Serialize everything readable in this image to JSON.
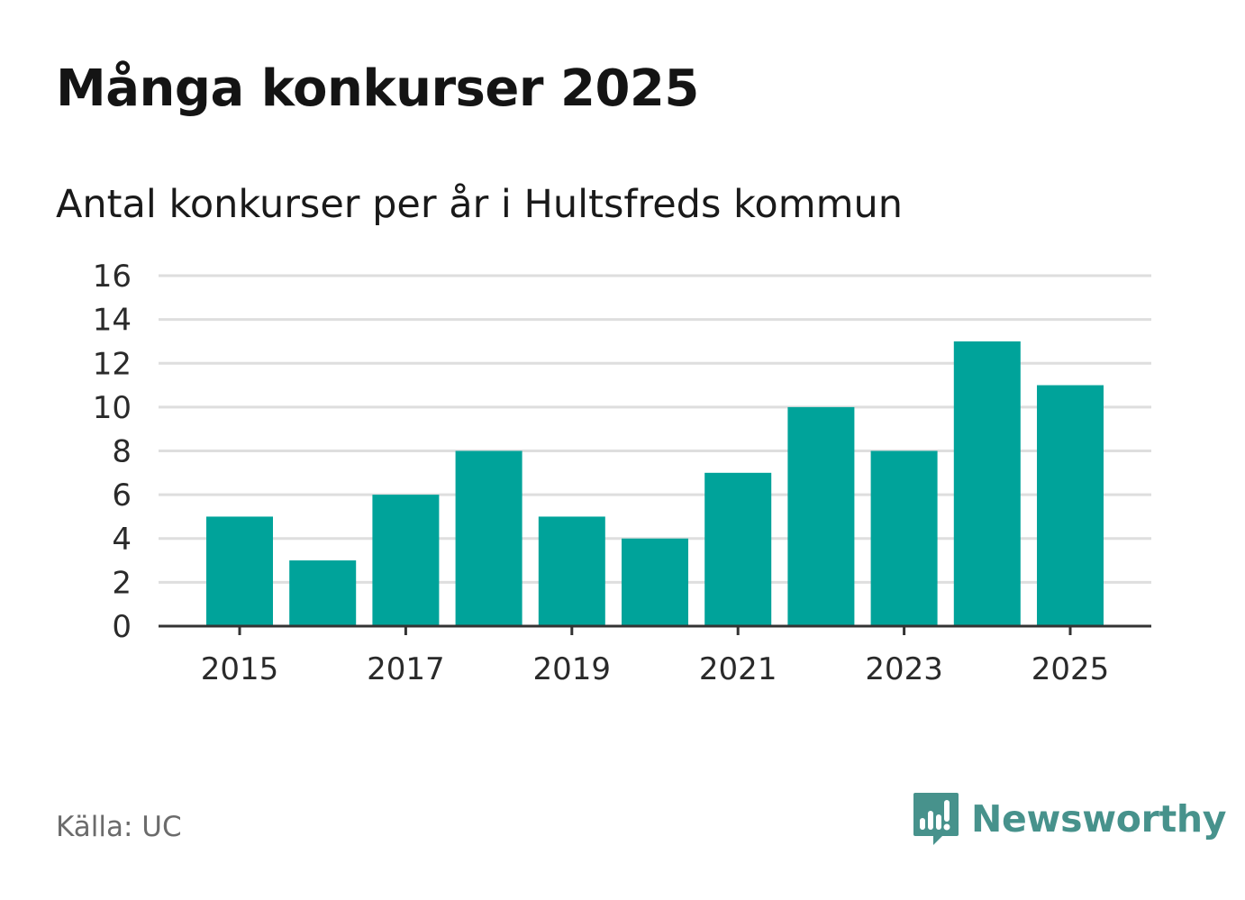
{
  "header": {
    "title": "Många konkurser 2025",
    "subtitle": "Antal konkurser per år i Hultsfreds kommun"
  },
  "footer": {
    "source": "Källa: UC",
    "brand": "Newsworthy",
    "brand_color": "#47928c"
  },
  "chart_data": {
    "type": "bar",
    "title": "Många konkurser 2025",
    "subtitle": "Antal konkurser per år i Hultsfreds kommun",
    "categories": [
      "2015",
      "2016",
      "2017",
      "2018",
      "2019",
      "2020",
      "2021",
      "2022",
      "2023",
      "2024",
      "2025"
    ],
    "values": [
      5,
      3,
      6,
      8,
      5,
      4,
      7,
      10,
      8,
      13,
      11
    ],
    "x_tick_labels": [
      "2015",
      "2017",
      "2019",
      "2021",
      "2023",
      "2025"
    ],
    "y_ticks": [
      0,
      2,
      4,
      6,
      8,
      10,
      12,
      14,
      16
    ],
    "ylim": [
      0,
      16
    ],
    "grid": true,
    "bar_color": "#00a39a",
    "xlabel": "",
    "ylabel": ""
  }
}
